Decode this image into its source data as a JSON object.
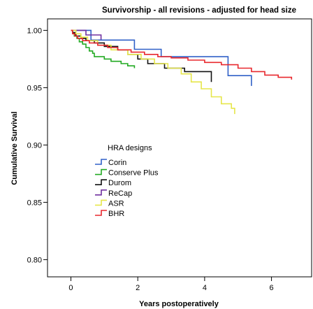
{
  "chart_data": {
    "type": "line",
    "subtype": "kaplan-meier step",
    "title": "Survivorship - all revisions - adjusted for head size",
    "xlabel": "Years postoperatively",
    "ylabel": "Cumulative Survival",
    "xlim": [
      -0.7,
      7.2
    ],
    "ylim": [
      0.785,
      1.01
    ],
    "x_ticks": [
      0,
      2,
      4,
      6
    ],
    "x_tick_labels": [
      "0",
      "2",
      "4",
      "6"
    ],
    "y_ticks": [
      0.8,
      0.85,
      0.9,
      0.95,
      1.0
    ],
    "y_tick_labels": [
      "0.80",
      "0.85",
      "0.90",
      "0.95",
      "1.00"
    ],
    "grid": false,
    "legend": {
      "title": "HRA designs",
      "placement": "center-left"
    },
    "series": [
      {
        "name": "Corin",
        "color": "#3060c8",
        "x": [
          0,
          0.6,
          1.9,
          2.7,
          4.7,
          5.4
        ],
        "y": [
          1.0,
          0.9915,
          0.9835,
          0.977,
          0.9605,
          0.9515
        ]
      },
      {
        "name": "Conserve Plus",
        "color": "#22aa22",
        "x": [
          0,
          0.05,
          0.1,
          0.18,
          0.25,
          0.35,
          0.45,
          0.55,
          0.65,
          0.7,
          1.0,
          1.2,
          1.5,
          1.7,
          1.9
        ],
        "y": [
          1.0,
          0.998,
          0.995,
          0.993,
          0.99,
          0.988,
          0.985,
          0.982,
          0.98,
          0.977,
          0.975,
          0.973,
          0.971,
          0.969,
          0.967
        ]
      },
      {
        "name": "Durom",
        "color": "#111111",
        "x": [
          0,
          0.05,
          0.15,
          0.3,
          0.45,
          0.7,
          1.0,
          1.4,
          1.7,
          2.0,
          2.3,
          2.8,
          3.4,
          4.2
        ],
        "y": [
          1.0,
          0.998,
          0.995,
          0.993,
          0.991,
          0.989,
          0.986,
          0.983,
          0.979,
          0.975,
          0.971,
          0.967,
          0.964,
          0.955
        ]
      },
      {
        "name": "ReCap",
        "color": "#7030a0",
        "x": [
          0,
          0.45,
          0.9
        ],
        "y": [
          1.0,
          0.996,
          0.992
        ]
      },
      {
        "name": "ASR",
        "color": "#e6e64a",
        "x": [
          0,
          0.15,
          0.3,
          0.5,
          0.8,
          1.2,
          1.7,
          2.1,
          2.5,
          2.9,
          3.3,
          3.6,
          3.9,
          4.2,
          4.5,
          4.8,
          4.9
        ],
        "y": [
          1.0,
          0.997,
          0.994,
          0.991,
          0.987,
          0.983,
          0.979,
          0.975,
          0.971,
          0.967,
          0.962,
          0.955,
          0.949,
          0.942,
          0.936,
          0.932,
          0.927
        ]
      },
      {
        "name": "BHR",
        "color": "#e8282e",
        "x": [
          0,
          0.05,
          0.12,
          0.2,
          0.35,
          0.55,
          0.8,
          1.1,
          1.4,
          1.8,
          2.2,
          2.6,
          3.0,
          3.5,
          4.0,
          4.5,
          5.0,
          5.4,
          5.8,
          6.2,
          6.6
        ],
        "y": [
          1.0,
          0.997,
          0.995,
          0.993,
          0.991,
          0.989,
          0.987,
          0.985,
          0.983,
          0.981,
          0.979,
          0.977,
          0.976,
          0.974,
          0.972,
          0.97,
          0.967,
          0.964,
          0.961,
          0.959,
          0.957
        ]
      }
    ]
  }
}
